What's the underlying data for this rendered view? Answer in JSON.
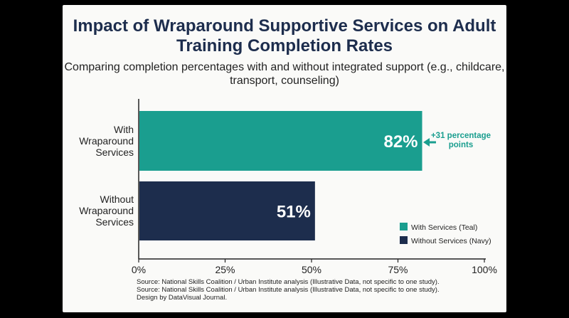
{
  "chart_data": {
    "type": "bar",
    "orientation": "horizontal",
    "title": "Impact of Wraparound Supportive Services on Adult Training Completion Rates",
    "subtitle": "Comparing completion percentages with and without integrated support (e.g., childcare, transport, counseling)",
    "categories": [
      "With Wraparound Services",
      "Without Wraparound Services"
    ],
    "values": [
      82,
      51
    ],
    "data_labels": [
      "82%",
      "51%"
    ],
    "colors": [
      "#1a9e8f",
      "#1d2d4d"
    ],
    "xlim": [
      0,
      100
    ],
    "x_ticks": [
      0,
      25,
      50,
      75,
      100
    ],
    "x_tick_labels": [
      "0%",
      "25%",
      "50%",
      "75%",
      "100%"
    ],
    "grid": false,
    "annotation": {
      "text": "+31 percentage points",
      "line1": "+31 percentage",
      "line2": "points",
      "color": "#1a9e8f"
    },
    "legend": {
      "position": "bottom-right",
      "entries": [
        {
          "label": "With Services (Teal)",
          "color": "#1a9e8f"
        },
        {
          "label": "Without Services (Navy)",
          "color": "#1d2d4d"
        }
      ]
    }
  },
  "footer": {
    "lines": [
      "Source: National Skills Coalition / Urban Institute analysis (Illustrative Data, not specific to one study).",
      "Source: National Skills Coalition / Urban Institute analysis (Illustrative Data, not specific to one study).",
      "Design by DataVisual Journal."
    ]
  }
}
